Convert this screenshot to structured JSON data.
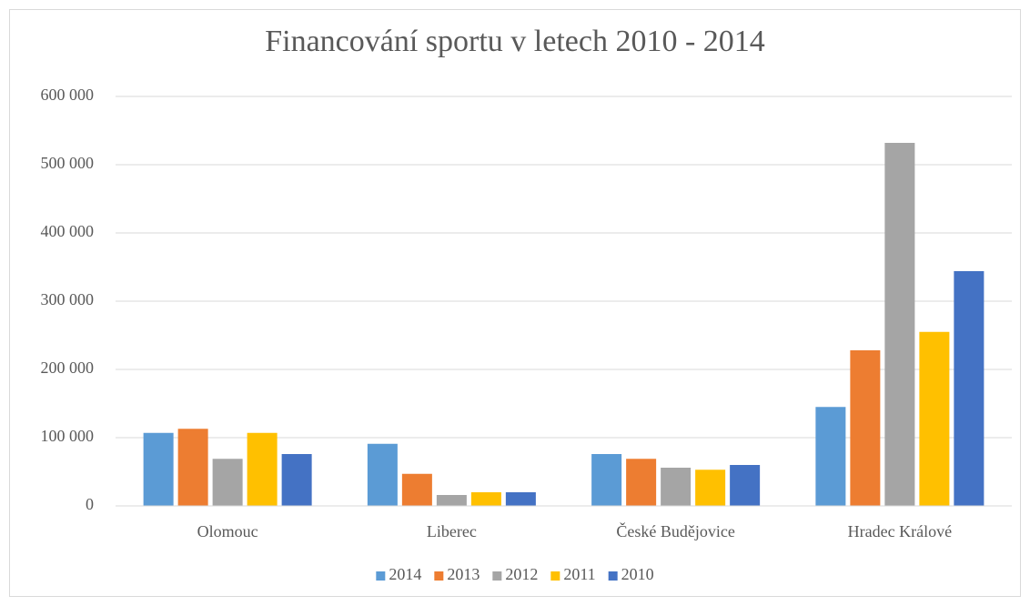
{
  "chart_data": {
    "type": "bar",
    "title": "Financování sportu v letech 2010 - 2014",
    "categories": [
      "Olomouc",
      "Liberec",
      "České Budějovice",
      "Hradec Králové"
    ],
    "series": [
      {
        "name": "2014",
        "color": "#5b9bd5",
        "values": [
          107000,
          91000,
          76000,
          145000
        ]
      },
      {
        "name": "2013",
        "color": "#ed7d31",
        "values": [
          113000,
          47000,
          69000,
          228000
        ]
      },
      {
        "name": "2012",
        "color": "#a5a5a5",
        "values": [
          69000,
          16000,
          56000,
          532000
        ]
      },
      {
        "name": "2011",
        "color": "#ffc000",
        "values": [
          107000,
          20000,
          53000,
          255000
        ]
      },
      {
        "name": "2010",
        "color": "#4472c4",
        "values": [
          76000,
          20000,
          60000,
          344000
        ]
      }
    ],
    "ylim": [
      0,
      600000
    ],
    "yticks": [
      0,
      {
        "value": 100000,
        "label": "100 000"
      },
      {
        "value": 200000,
        "label": "200 000"
      },
      {
        "value": 300000,
        "label": "300 000"
      },
      {
        "value": 400000,
        "label": "400 000"
      },
      {
        "value": 500000,
        "label": "500 000"
      },
      {
        "value": 600000,
        "label": "600 000"
      }
    ],
    "grid": true,
    "legend": "bottom"
  }
}
